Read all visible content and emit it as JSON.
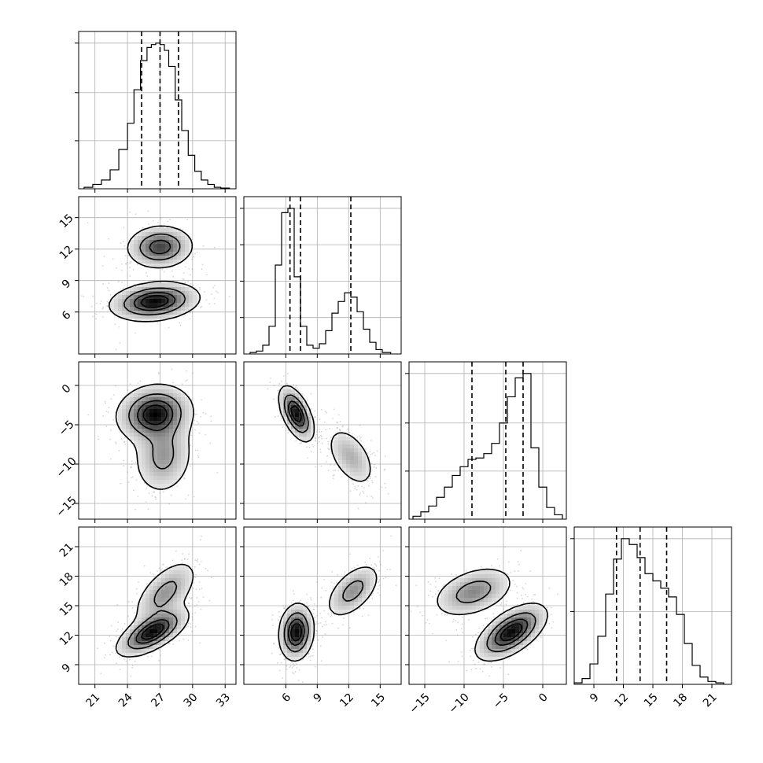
{
  "chart_data": {
    "type": "corner",
    "title": "",
    "parameters": [
      {
        "xlabel": "",
        "ylabel": "",
        "range": [
          19.5,
          34
        ],
        "ticks": [
          21,
          24,
          27,
          30,
          33
        ],
        "tick_labels": [
          "21",
          "24",
          "27",
          "30",
          "33"
        ]
      },
      {
        "xlabel": "",
        "ylabel": "",
        "range": [
          2,
          17
        ],
        "ticks": [
          6,
          9,
          12,
          15
        ],
        "tick_labels": [
          "6",
          "9",
          "12",
          "15"
        ]
      },
      {
        "xlabel": "",
        "ylabel": "",
        "range": [
          -17,
          3
        ],
        "ticks": [
          -15,
          -10,
          -5,
          0
        ],
        "tick_labels": [
          "−15",
          "−10",
          "−5",
          "0"
        ]
      },
      {
        "xlabel": "",
        "ylabel": "",
        "range": [
          7,
          23
        ],
        "ticks": [
          9,
          12,
          15,
          18,
          21
        ],
        "tick_labels": [
          "9",
          "12",
          "15",
          "18",
          "21"
        ]
      }
    ],
    "grid": true,
    "histograms": [
      {
        "param": 0,
        "bin_edges": [
          20.0,
          20.8,
          21.6,
          22.4,
          23.2,
          24.0,
          24.6,
          25.2,
          25.8,
          26.2,
          26.6,
          27.0,
          27.4,
          27.8,
          28.4,
          29.0,
          29.6,
          30.2,
          30.8,
          31.4,
          32.0,
          32.6,
          33.4
        ],
        "counts": [
          0.01,
          0.03,
          0.06,
          0.13,
          0.27,
          0.45,
          0.68,
          0.88,
          0.97,
          0.99,
          1.0,
          0.99,
          0.95,
          0.84,
          0.61,
          0.4,
          0.23,
          0.12,
          0.06,
          0.03,
          0.01,
          0.005
        ],
        "y_ticks": [
          0.33,
          0.66,
          1.0
        ],
        "quantiles": [
          25.3,
          27.0,
          28.7
        ]
      },
      {
        "param": 1,
        "bin_edges": [
          2.6,
          3.2,
          3.8,
          4.4,
          5.0,
          5.6,
          6.2,
          6.8,
          7.4,
          8.0,
          8.6,
          9.2,
          9.8,
          10.4,
          11.0,
          11.6,
          12.2,
          12.8,
          13.4,
          14.0,
          14.6,
          15.2,
          16.0
        ],
        "counts": [
          0.01,
          0.02,
          0.06,
          0.19,
          0.61,
          0.97,
          1.0,
          0.53,
          0.19,
          0.06,
          0.04,
          0.07,
          0.16,
          0.28,
          0.36,
          0.42,
          0.39,
          0.29,
          0.17,
          0.08,
          0.03,
          0.01
        ],
        "y_ticks": [
          0.25,
          0.5,
          0.75,
          1.0
        ],
        "quantiles": [
          6.4,
          7.4,
          12.2
        ]
      },
      {
        "param": 2,
        "bin_edges": [
          -16.5,
          -15.5,
          -14.5,
          -13.5,
          -12.5,
          -11.5,
          -10.5,
          -9.5,
          -8.5,
          -7.5,
          -6.5,
          -5.5,
          -4.5,
          -3.5,
          -2.5,
          -1.5,
          -0.5,
          0.5,
          1.5,
          2.5
        ],
        "counts": [
          0.02,
          0.05,
          0.09,
          0.15,
          0.22,
          0.3,
          0.36,
          0.41,
          0.42,
          0.45,
          0.52,
          0.66,
          0.84,
          0.97,
          1.0,
          0.49,
          0.22,
          0.08,
          0.03
        ],
        "y_ticks": [
          0.33,
          0.66,
          1.0
        ],
        "quantiles": [
          -9.0,
          -4.7,
          -2.5
        ]
      },
      {
        "param": 3,
        "bin_edges": [
          7.0,
          7.8,
          8.6,
          9.4,
          10.2,
          11.0,
          11.8,
          12.6,
          13.4,
          14.2,
          15.0,
          15.8,
          16.6,
          17.4,
          18.2,
          19.0,
          19.8,
          20.6,
          21.4,
          22.2
        ],
        "counts": [
          0.01,
          0.04,
          0.14,
          0.33,
          0.62,
          0.86,
          1.0,
          0.96,
          0.87,
          0.76,
          0.71,
          0.66,
          0.6,
          0.48,
          0.28,
          0.13,
          0.05,
          0.02,
          0.01
        ],
        "y_ticks": [
          0.5,
          1.0
        ],
        "quantiles": [
          11.3,
          13.7,
          16.4
        ]
      }
    ],
    "pairs": [
      {
        "x": 0,
        "y": 1,
        "modes": [
          {
            "mean": [
              27.0,
              12.2
            ],
            "sd": [
              1.5,
              1.0
            ],
            "weight": 0.4,
            "rho": 0.05
          },
          {
            "mean": [
              26.5,
              7.0
            ],
            "sd": [
              2.0,
              0.9
            ],
            "weight": 0.6,
            "rho": 0.2
          }
        ]
      },
      {
        "x": 0,
        "y": 2,
        "modes": [
          {
            "mean": [
              26.5,
              -3.6
            ],
            "sd": [
              1.7,
              1.8
            ],
            "weight": 0.65,
            "rho": 0.1
          },
          {
            "mean": [
              27.3,
              -9.0
            ],
            "sd": [
              1.4,
              2.5
            ],
            "weight": 0.35,
            "rho": 0.1
          }
        ]
      },
      {
        "x": 1,
        "y": 2,
        "modes": [
          {
            "mean": [
              7.0,
              -3.6
            ],
            "sd": [
              0.8,
              1.7
            ],
            "weight": 0.6,
            "rho": -0.55
          },
          {
            "mean": [
              12.2,
              -9.1
            ],
            "sd": [
              1.2,
              2.0
            ],
            "weight": 0.4,
            "rho": -0.5
          }
        ]
      },
      {
        "x": 0,
        "y": 3,
        "modes": [
          {
            "mean": [
              26.3,
              12.3
            ],
            "sd": [
              1.6,
              1.2
            ],
            "weight": 0.6,
            "rho": 0.65
          },
          {
            "mean": [
              27.5,
              16.3
            ],
            "sd": [
              1.5,
              1.7
            ],
            "weight": 0.4,
            "rho": 0.6
          }
        ]
      },
      {
        "x": 1,
        "y": 3,
        "modes": [
          {
            "mean": [
              7.0,
              12.3
            ],
            "sd": [
              0.8,
              1.4
            ],
            "weight": 0.6,
            "rho": 0.1
          },
          {
            "mean": [
              12.4,
              16.5
            ],
            "sd": [
              1.3,
              1.4
            ],
            "weight": 0.4,
            "rho": 0.55
          }
        ]
      },
      {
        "x": 2,
        "y": 3,
        "modes": [
          {
            "mean": [
              -4.0,
              12.3
            ],
            "sd": [
              2.2,
              1.4
            ],
            "weight": 0.6,
            "rho": 0.6
          },
          {
            "mean": [
              -8.8,
              16.4
            ],
            "sd": [
              2.6,
              1.3
            ],
            "weight": 0.4,
            "rho": 0.4
          }
        ]
      }
    ],
    "contour_levels": [
      0.118,
      0.393,
      0.675,
      0.865
    ],
    "colors": {
      "contour": "#000000",
      "histogram": "#000000",
      "scatter": "#888888",
      "grid": "#b0b0b0",
      "density": "#000000"
    }
  }
}
